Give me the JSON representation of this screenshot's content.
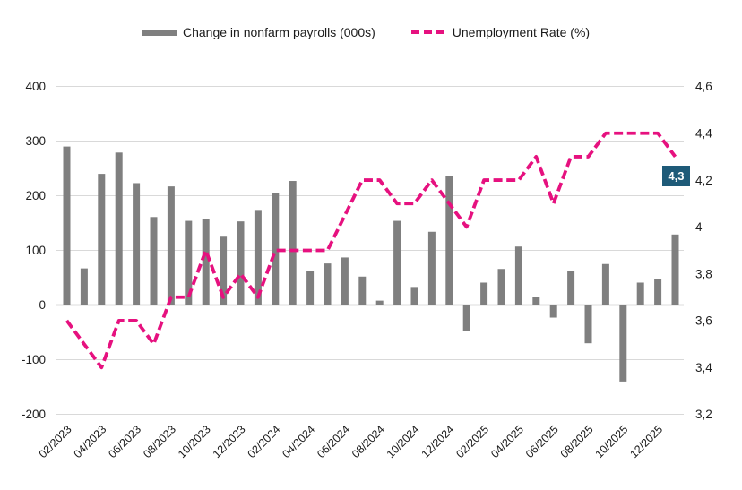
{
  "legend": {
    "bars_label": "Change in nonfarm payrolls (000s)",
    "line_label": "Unemployment Rate (%)"
  },
  "chart_data": {
    "type": "bar",
    "subtype": "combo-bar-line-dual-axis",
    "categories": [
      "02/2023",
      "03/2023",
      "04/2023",
      "05/2023",
      "06/2023",
      "07/2023",
      "08/2023",
      "09/2023",
      "10/2023",
      "11/2023",
      "12/2023",
      "01/2024",
      "02/2024",
      "03/2024",
      "04/2024",
      "05/2024",
      "06/2024",
      "07/2024",
      "08/2024",
      "09/2024",
      "10/2024",
      "11/2024",
      "12/2024",
      "01/2025",
      "02/2025",
      "03/2025",
      "04/2025",
      "05/2025",
      "06/2025",
      "07/2025",
      "08/2025",
      "09/2025",
      "10/2025",
      "11/2025",
      "12/2025",
      "01/2026"
    ],
    "series": [
      {
        "name": "Change in nonfarm payrolls (000s)",
        "type": "bar",
        "axis": "left",
        "color": "#7f7f7f",
        "values": [
          290,
          67,
          240,
          279,
          223,
          161,
          217,
          154,
          158,
          125,
          153,
          174,
          205,
          227,
          63,
          76,
          87,
          52,
          8,
          154,
          33,
          134,
          236,
          -48,
          41,
          66,
          107,
          14,
          -23,
          63,
          -70,
          75,
          -140,
          41,
          47,
          129
        ]
      },
      {
        "name": "Unemployment Rate (%)",
        "type": "line",
        "dashed": true,
        "axis": "right",
        "color": "#e6117f",
        "values": [
          3.6,
          3.5,
          3.4,
          3.6,
          3.6,
          3.5,
          3.7,
          3.7,
          3.9,
          3.7,
          3.8,
          3.7,
          3.9,
          3.9,
          3.9,
          3.9,
          4.05,
          4.2,
          4.2,
          4.1,
          4.1,
          4.2,
          4.1,
          4.0,
          4.2,
          4.2,
          4.2,
          4.3,
          4.1,
          4.3,
          4.3,
          4.4,
          4.4,
          4.4,
          4.4,
          4.3
        ]
      }
    ],
    "left_axis": {
      "min": -200,
      "max": 400,
      "step": 100,
      "tick_labels": [
        "400",
        "300",
        "200",
        "100",
        "0",
        "-100",
        "-200"
      ]
    },
    "right_axis": {
      "min": 3.2,
      "max": 4.6,
      "step": 0.2,
      "tick_labels": [
        "4,6",
        "4,4",
        "4,2",
        "4",
        "3,8",
        "3,6",
        "3,4",
        "3,2"
      ]
    },
    "x_tick_labels": [
      "02/2023",
      "04/2023",
      "06/2023",
      "08/2023",
      "10/2023",
      "12/2023",
      "02/2024",
      "04/2024",
      "06/2024",
      "08/2024",
      "10/2024",
      "12/2024",
      "02/2025",
      "04/2025",
      "06/2025",
      "08/2025",
      "10/2025",
      "12/2025"
    ],
    "grid": true,
    "legend_position": "top",
    "end_label": {
      "text": "4,3",
      "color": "#1e5a78"
    }
  }
}
